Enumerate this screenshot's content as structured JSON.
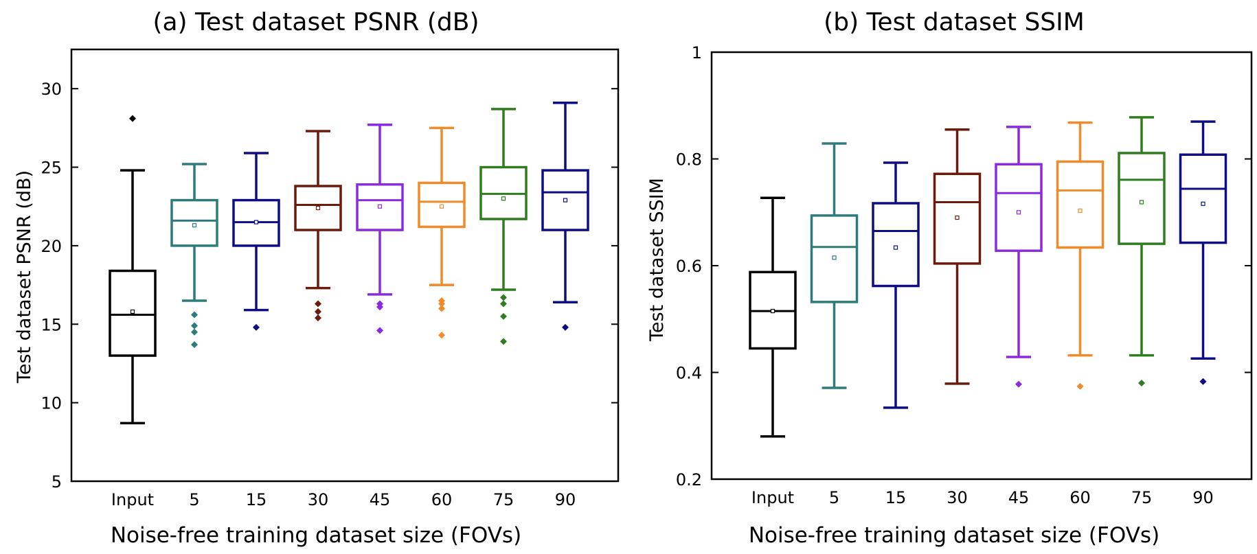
{
  "chart_data": [
    {
      "type": "box",
      "title": "(a) Test dataset PSNR (dB)",
      "xlabel": "Noise-free training dataset size (FOVs)",
      "ylabel": "Test dataset PSNR (dB)",
      "categories": [
        "Input",
        "5",
        "15",
        "30",
        "45",
        "60",
        "75",
        "90"
      ],
      "ylim": [
        5,
        32.5
      ],
      "yticks": [
        5,
        10,
        15,
        20,
        25,
        30
      ],
      "yticklabels": [
        "5",
        "10",
        "15",
        "20",
        "25",
        "30"
      ],
      "grid": false,
      "boxes": [
        {
          "category": "Input",
          "color": "#000000",
          "whislo": 8.7,
          "q1": 13.0,
          "median": 15.6,
          "q3": 18.4,
          "whishi": 24.8,
          "mean": 15.8,
          "outliers": [
            28.1
          ]
        },
        {
          "category": "5",
          "color": "#2e7b7b",
          "whislo": 16.5,
          "q1": 20.0,
          "median": 21.6,
          "q3": 22.9,
          "whishi": 25.2,
          "mean": 21.3,
          "outliers": [
            15.6,
            14.9,
            14.5,
            13.7
          ]
        },
        {
          "category": "15",
          "color": "#0d0d85",
          "whislo": 15.9,
          "q1": 20.0,
          "median": 21.5,
          "q3": 22.9,
          "whishi": 25.9,
          "mean": 21.5,
          "outliers": [
            14.8
          ]
        },
        {
          "category": "30",
          "color": "#6b1a0c",
          "whislo": 17.3,
          "q1": 21.0,
          "median": 22.6,
          "q3": 23.8,
          "whishi": 27.3,
          "mean": 22.4,
          "outliers": [
            16.3,
            15.8,
            15.4
          ]
        },
        {
          "category": "45",
          "color": "#8a2be2",
          "whislo": 16.9,
          "q1": 21.0,
          "median": 22.9,
          "q3": 23.9,
          "whishi": 27.7,
          "mean": 22.5,
          "outliers": [
            16.3,
            16.1,
            14.6
          ]
        },
        {
          "category": "60",
          "color": "#f08a2a",
          "whislo": 17.5,
          "q1": 21.2,
          "median": 22.8,
          "q3": 24.0,
          "whishi": 27.5,
          "mean": 22.5,
          "outliers": [
            16.5,
            16.3,
            16.0,
            14.3
          ]
        },
        {
          "category": "75",
          "color": "#2e7d1e",
          "whislo": 17.2,
          "q1": 21.7,
          "median": 23.3,
          "q3": 25.0,
          "whishi": 28.7,
          "mean": 23.0,
          "outliers": [
            16.7,
            16.3,
            15.5,
            13.9
          ]
        },
        {
          "category": "90",
          "color": "#0d0d85",
          "whislo": 16.4,
          "q1": 21.0,
          "median": 23.4,
          "q3": 24.8,
          "whishi": 29.1,
          "mean": 22.9,
          "outliers": [
            14.8
          ]
        }
      ]
    },
    {
      "type": "box",
      "title": "(b) Test dataset SSIM",
      "xlabel": "Noise-free training dataset size (FOVs)",
      "ylabel": "Test dataset SSIM",
      "categories": [
        "Input",
        "5",
        "15",
        "30",
        "45",
        "60",
        "75",
        "90"
      ],
      "ylim": [
        0.2,
        1.0
      ],
      "yticks": [
        0.2,
        0.4,
        0.6,
        0.8,
        1.0
      ],
      "yticklabels": [
        "0.2",
        "0.4",
        "0.6",
        "0.8",
        "1"
      ],
      "grid": false,
      "boxes": [
        {
          "category": "Input",
          "color": "#000000",
          "whislo": 0.28,
          "q1": 0.445,
          "median": 0.515,
          "q3": 0.588,
          "whishi": 0.727,
          "mean": 0.515,
          "outliers": []
        },
        {
          "category": "5",
          "color": "#2e7b7b",
          "whislo": 0.371,
          "q1": 0.532,
          "median": 0.635,
          "q3": 0.694,
          "whishi": 0.829,
          "mean": 0.615,
          "outliers": []
        },
        {
          "category": "15",
          "color": "#0d0d85",
          "whislo": 0.334,
          "q1": 0.562,
          "median": 0.665,
          "q3": 0.717,
          "whishi": 0.793,
          "mean": 0.634,
          "outliers": []
        },
        {
          "category": "30",
          "color": "#6b1a0c",
          "whislo": 0.379,
          "q1": 0.604,
          "median": 0.719,
          "q3": 0.772,
          "whishi": 0.855,
          "mean": 0.69,
          "outliers": []
        },
        {
          "category": "45",
          "color": "#8a2be2",
          "whislo": 0.429,
          "q1": 0.628,
          "median": 0.736,
          "q3": 0.79,
          "whishi": 0.86,
          "mean": 0.7,
          "outliers": [
            0.378
          ]
        },
        {
          "category": "60",
          "color": "#f08a2a",
          "whislo": 0.432,
          "q1": 0.634,
          "median": 0.741,
          "q3": 0.795,
          "whishi": 0.868,
          "mean": 0.703,
          "outliers": [
            0.374
          ]
        },
        {
          "category": "75",
          "color": "#2e7d1e",
          "whislo": 0.432,
          "q1": 0.641,
          "median": 0.761,
          "q3": 0.811,
          "whishi": 0.878,
          "mean": 0.719,
          "outliers": [
            0.38
          ]
        },
        {
          "category": "90",
          "color": "#0d0d85",
          "whislo": 0.426,
          "q1": 0.643,
          "median": 0.744,
          "q3": 0.808,
          "whishi": 0.87,
          "mean": 0.716,
          "outliers": [
            0.383
          ]
        }
      ]
    }
  ]
}
